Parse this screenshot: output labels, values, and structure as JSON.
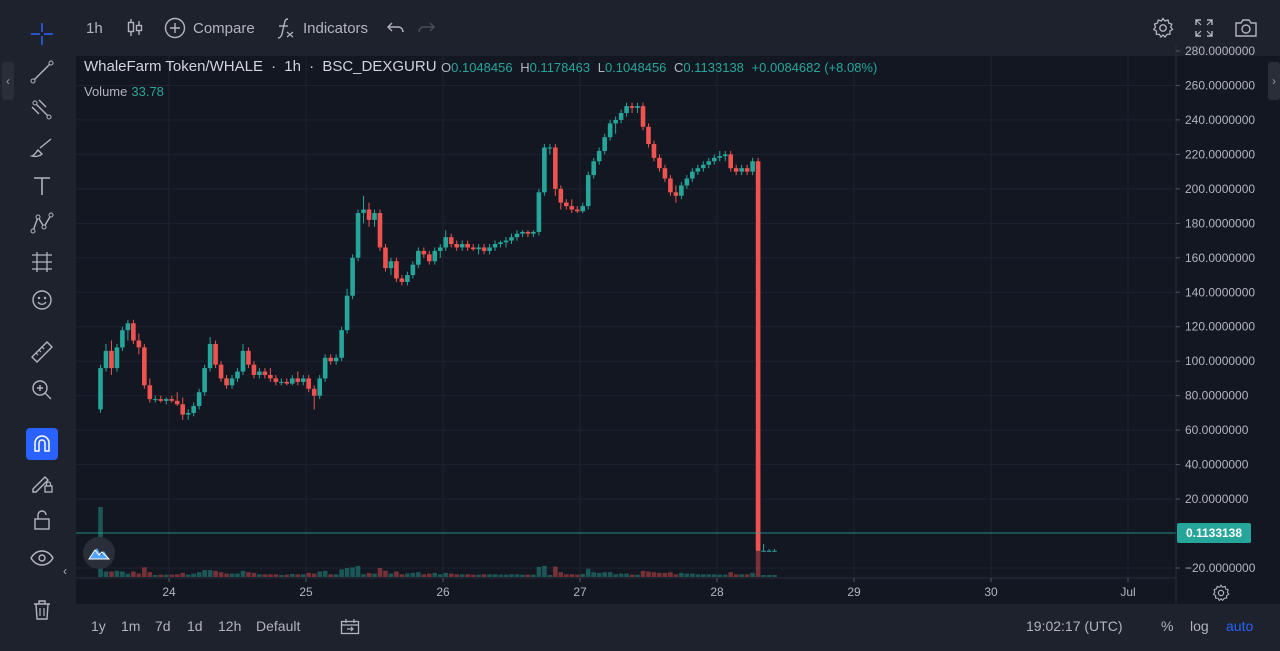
{
  "toolbar": {
    "interval": "1h",
    "compare": "Compare",
    "indicators": "Indicators"
  },
  "legend": {
    "symbol": "WhaleFarm Token/WHALE",
    "sep1": "·",
    "interval": "1h",
    "sep2": "·",
    "exchange": "BSC_DEXGURU",
    "o_label": "O",
    "o_value": "0.1048456",
    "h_label": "H",
    "h_value": "0.1178463",
    "l_label": "L",
    "l_value": "0.1048456",
    "c_label": "C",
    "c_value": "0.1133138",
    "change": "+0.0084682 (+8.08%)",
    "volume_label": "Volume",
    "volume_value": "33.78"
  },
  "price_axis": {
    "labels": [
      "280.0000000",
      "260.0000000",
      "240.0000000",
      "220.0000000",
      "200.0000000",
      "180.0000000",
      "160.0000000",
      "140.0000000",
      "120.0000000",
      "100.0000000",
      "80.0000000",
      "60.0000000",
      "40.0000000",
      "20.0000000",
      "−20.0000000"
    ],
    "last_price": "0.1133138",
    "last_price_color": "#26a69a"
  },
  "time_axis": {
    "labels": [
      "24",
      "25",
      "26",
      "27",
      "28",
      "29",
      "30",
      "Jul"
    ]
  },
  "bottom": {
    "ranges": [
      "1y",
      "1m",
      "7d",
      "1d",
      "12h",
      "Default"
    ],
    "clock": "19:02:17 (UTC)",
    "percent": "%",
    "log": "log",
    "auto": "auto"
  },
  "colors": {
    "up": "#26a69a",
    "down": "#ef5350",
    "accent": "#2962ff"
  },
  "chart_data": {
    "type": "candlestick",
    "title": "WhaleFarm Token/WHALE · 1h · BSC_DEXGURU",
    "ylim": [
      -24,
      282
    ],
    "x_ticks": [
      "24",
      "25",
      "26",
      "27",
      "28",
      "29",
      "30",
      "Jul"
    ],
    "x_days_range": [
      23.45,
      30.95
    ],
    "candles": [
      {
        "d": 23.5,
        "o": 72,
        "h": 98,
        "l": 70,
        "c": 96
      },
      {
        "d": 23.54,
        "o": 96,
        "h": 110,
        "l": 94,
        "c": 106
      },
      {
        "d": 23.58,
        "o": 106,
        "h": 112,
        "l": 92,
        "c": 96
      },
      {
        "d": 23.62,
        "o": 96,
        "h": 110,
        "l": 94,
        "c": 108
      },
      {
        "d": 23.66,
        "o": 108,
        "h": 120,
        "l": 106,
        "c": 118
      },
      {
        "d": 23.7,
        "o": 118,
        "h": 124,
        "l": 112,
        "c": 122
      },
      {
        "d": 23.74,
        "o": 122,
        "h": 124,
        "l": 110,
        "c": 112
      },
      {
        "d": 23.78,
        "o": 112,
        "h": 116,
        "l": 104,
        "c": 108
      },
      {
        "d": 23.82,
        "o": 108,
        "h": 110,
        "l": 84,
        "c": 86
      },
      {
        "d": 23.86,
        "o": 86,
        "h": 90,
        "l": 76,
        "c": 78
      },
      {
        "d": 23.9,
        "o": 78,
        "h": 80,
        "l": 76,
        "c": 78
      },
      {
        "d": 23.94,
        "o": 78,
        "h": 80,
        "l": 76,
        "c": 77
      },
      {
        "d": 23.98,
        "o": 77,
        "h": 79,
        "l": 75,
        "c": 78
      },
      {
        "d": 24.02,
        "o": 78,
        "h": 80,
        "l": 76,
        "c": 77
      },
      {
        "d": 24.06,
        "o": 77,
        "h": 82,
        "l": 74,
        "c": 75
      },
      {
        "d": 24.1,
        "o": 75,
        "h": 79,
        "l": 66,
        "c": 69
      },
      {
        "d": 24.14,
        "o": 69,
        "h": 72,
        "l": 66,
        "c": 70
      },
      {
        "d": 24.18,
        "o": 70,
        "h": 76,
        "l": 68,
        "c": 74
      },
      {
        "d": 24.22,
        "o": 74,
        "h": 84,
        "l": 72,
        "c": 82
      },
      {
        "d": 24.26,
        "o": 82,
        "h": 98,
        "l": 80,
        "c": 96
      },
      {
        "d": 24.3,
        "o": 96,
        "h": 114,
        "l": 94,
        "c": 110
      },
      {
        "d": 24.34,
        "o": 110,
        "h": 112,
        "l": 96,
        "c": 98
      },
      {
        "d": 24.38,
        "o": 98,
        "h": 100,
        "l": 88,
        "c": 90
      },
      {
        "d": 24.42,
        "o": 90,
        "h": 92,
        "l": 84,
        "c": 86
      },
      {
        "d": 24.46,
        "o": 86,
        "h": 92,
        "l": 84,
        "c": 90
      },
      {
        "d": 24.5,
        "o": 90,
        "h": 96,
        "l": 88,
        "c": 94
      },
      {
        "d": 24.54,
        "o": 94,
        "h": 110,
        "l": 92,
        "c": 106
      },
      {
        "d": 24.58,
        "o": 106,
        "h": 108,
        "l": 96,
        "c": 98
      },
      {
        "d": 24.62,
        "o": 98,
        "h": 100,
        "l": 90,
        "c": 92
      },
      {
        "d": 24.66,
        "o": 92,
        "h": 96,
        "l": 90,
        "c": 94
      },
      {
        "d": 24.7,
        "o": 94,
        "h": 96,
        "l": 90,
        "c": 92
      },
      {
        "d": 24.74,
        "o": 92,
        "h": 96,
        "l": 88,
        "c": 90
      },
      {
        "d": 24.78,
        "o": 90,
        "h": 92,
        "l": 86,
        "c": 88
      },
      {
        "d": 24.82,
        "o": 88,
        "h": 90,
        "l": 86,
        "c": 88
      },
      {
        "d": 24.86,
        "o": 88,
        "h": 90,
        "l": 86,
        "c": 87
      },
      {
        "d": 24.9,
        "o": 87,
        "h": 92,
        "l": 86,
        "c": 90
      },
      {
        "d": 24.94,
        "o": 90,
        "h": 94,
        "l": 86,
        "c": 88
      },
      {
        "d": 24.98,
        "o": 88,
        "h": 92,
        "l": 86,
        "c": 90
      },
      {
        "d": 25.02,
        "o": 90,
        "h": 92,
        "l": 82,
        "c": 84
      },
      {
        "d": 25.06,
        "o": 84,
        "h": 86,
        "l": 72,
        "c": 80
      },
      {
        "d": 25.1,
        "o": 80,
        "h": 92,
        "l": 78,
        "c": 90
      },
      {
        "d": 25.14,
        "o": 90,
        "h": 104,
        "l": 88,
        "c": 102
      },
      {
        "d": 25.18,
        "o": 102,
        "h": 104,
        "l": 98,
        "c": 100
      },
      {
        "d": 25.22,
        "o": 100,
        "h": 104,
        "l": 98,
        "c": 102
      },
      {
        "d": 25.26,
        "o": 102,
        "h": 120,
        "l": 100,
        "c": 118
      },
      {
        "d": 25.3,
        "o": 118,
        "h": 142,
        "l": 116,
        "c": 138
      },
      {
        "d": 25.34,
        "o": 138,
        "h": 162,
        "l": 136,
        "c": 160
      },
      {
        "d": 25.38,
        "o": 160,
        "h": 188,
        "l": 158,
        "c": 186
      },
      {
        "d": 25.42,
        "o": 186,
        "h": 196,
        "l": 180,
        "c": 188
      },
      {
        "d": 25.46,
        "o": 188,
        "h": 192,
        "l": 178,
        "c": 182
      },
      {
        "d": 25.5,
        "o": 182,
        "h": 188,
        "l": 178,
        "c": 186
      },
      {
        "d": 25.54,
        "o": 186,
        "h": 188,
        "l": 164,
        "c": 166
      },
      {
        "d": 25.58,
        "o": 166,
        "h": 168,
        "l": 152,
        "c": 154
      },
      {
        "d": 25.62,
        "o": 154,
        "h": 160,
        "l": 150,
        "c": 158
      },
      {
        "d": 25.66,
        "o": 158,
        "h": 160,
        "l": 146,
        "c": 148
      },
      {
        "d": 25.7,
        "o": 148,
        "h": 150,
        "l": 144,
        "c": 146
      },
      {
        "d": 25.74,
        "o": 146,
        "h": 152,
        "l": 144,
        "c": 150
      },
      {
        "d": 25.78,
        "o": 150,
        "h": 158,
        "l": 148,
        "c": 156
      },
      {
        "d": 25.82,
        "o": 156,
        "h": 166,
        "l": 154,
        "c": 164
      },
      {
        "d": 25.86,
        "o": 164,
        "h": 166,
        "l": 160,
        "c": 162
      },
      {
        "d": 25.9,
        "o": 162,
        "h": 164,
        "l": 156,
        "c": 158
      },
      {
        "d": 25.94,
        "o": 158,
        "h": 166,
        "l": 156,
        "c": 164
      },
      {
        "d": 25.98,
        "o": 164,
        "h": 168,
        "l": 160,
        "c": 166
      },
      {
        "d": 26.02,
        "o": 166,
        "h": 176,
        "l": 164,
        "c": 172
      },
      {
        "d": 26.06,
        "o": 172,
        "h": 174,
        "l": 166,
        "c": 168
      },
      {
        "d": 26.1,
        "o": 168,
        "h": 170,
        "l": 164,
        "c": 166
      },
      {
        "d": 26.14,
        "o": 166,
        "h": 170,
        "l": 164,
        "c": 168
      },
      {
        "d": 26.18,
        "o": 168,
        "h": 170,
        "l": 164,
        "c": 166
      },
      {
        "d": 26.22,
        "o": 166,
        "h": 168,
        "l": 164,
        "c": 165
      },
      {
        "d": 26.26,
        "o": 165,
        "h": 168,
        "l": 162,
        "c": 166
      },
      {
        "d": 26.3,
        "o": 166,
        "h": 168,
        "l": 162,
        "c": 164
      },
      {
        "d": 26.34,
        "o": 164,
        "h": 168,
        "l": 162,
        "c": 166
      },
      {
        "d": 26.38,
        "o": 166,
        "h": 170,
        "l": 164,
        "c": 168
      },
      {
        "d": 26.42,
        "o": 168,
        "h": 170,
        "l": 166,
        "c": 169
      },
      {
        "d": 26.46,
        "o": 169,
        "h": 172,
        "l": 166,
        "c": 170
      },
      {
        "d": 26.5,
        "o": 170,
        "h": 174,
        "l": 168,
        "c": 172
      },
      {
        "d": 26.54,
        "o": 172,
        "h": 176,
        "l": 170,
        "c": 174
      },
      {
        "d": 26.58,
        "o": 174,
        "h": 176,
        "l": 172,
        "c": 175
      },
      {
        "d": 26.62,
        "o": 175,
        "h": 176,
        "l": 172,
        "c": 174
      },
      {
        "d": 26.66,
        "o": 174,
        "h": 176,
        "l": 172,
        "c": 175
      },
      {
        "d": 26.7,
        "o": 175,
        "h": 200,
        "l": 173,
        "c": 198
      },
      {
        "d": 26.74,
        "o": 198,
        "h": 226,
        "l": 196,
        "c": 224
      },
      {
        "d": 26.78,
        "o": 224,
        "h": 226,
        "l": 220,
        "c": 224
      },
      {
        "d": 26.82,
        "o": 224,
        "h": 226,
        "l": 196,
        "c": 200
      },
      {
        "d": 26.86,
        "o": 200,
        "h": 202,
        "l": 188,
        "c": 192
      },
      {
        "d": 26.9,
        "o": 192,
        "h": 194,
        "l": 188,
        "c": 190
      },
      {
        "d": 26.94,
        "o": 190,
        "h": 194,
        "l": 186,
        "c": 188
      },
      {
        "d": 26.98,
        "o": 188,
        "h": 190,
        "l": 186,
        "c": 187
      },
      {
        "d": 27.02,
        "o": 187,
        "h": 192,
        "l": 186,
        "c": 190
      },
      {
        "d": 27.06,
        "o": 190,
        "h": 210,
        "l": 188,
        "c": 208
      },
      {
        "d": 27.1,
        "o": 208,
        "h": 218,
        "l": 206,
        "c": 216
      },
      {
        "d": 27.14,
        "o": 216,
        "h": 224,
        "l": 214,
        "c": 222
      },
      {
        "d": 27.18,
        "o": 222,
        "h": 232,
        "l": 220,
        "c": 230
      },
      {
        "d": 27.22,
        "o": 230,
        "h": 240,
        "l": 228,
        "c": 238
      },
      {
        "d": 27.26,
        "o": 238,
        "h": 242,
        "l": 232,
        "c": 240
      },
      {
        "d": 27.3,
        "o": 240,
        "h": 246,
        "l": 238,
        "c": 244
      },
      {
        "d": 27.34,
        "o": 244,
        "h": 250,
        "l": 242,
        "c": 248
      },
      {
        "d": 27.38,
        "o": 248,
        "h": 250,
        "l": 244,
        "c": 247
      },
      {
        "d": 27.42,
        "o": 247,
        "h": 250,
        "l": 244,
        "c": 248
      },
      {
        "d": 27.46,
        "o": 248,
        "h": 250,
        "l": 234,
        "c": 236
      },
      {
        "d": 27.5,
        "o": 236,
        "h": 238,
        "l": 224,
        "c": 226
      },
      {
        "d": 27.54,
        "o": 226,
        "h": 228,
        "l": 216,
        "c": 218
      },
      {
        "d": 27.58,
        "o": 218,
        "h": 220,
        "l": 210,
        "c": 212
      },
      {
        "d": 27.62,
        "o": 212,
        "h": 214,
        "l": 204,
        "c": 206
      },
      {
        "d": 27.66,
        "o": 206,
        "h": 208,
        "l": 196,
        "c": 198
      },
      {
        "d": 27.7,
        "o": 198,
        "h": 202,
        "l": 192,
        "c": 196
      },
      {
        "d": 27.74,
        "o": 196,
        "h": 204,
        "l": 194,
        "c": 202
      },
      {
        "d": 27.78,
        "o": 202,
        "h": 208,
        "l": 200,
        "c": 206
      },
      {
        "d": 27.82,
        "o": 206,
        "h": 212,
        "l": 204,
        "c": 210
      },
      {
        "d": 27.86,
        "o": 210,
        "h": 214,
        "l": 208,
        "c": 212
      },
      {
        "d": 27.9,
        "o": 212,
        "h": 216,
        "l": 210,
        "c": 214
      },
      {
        "d": 27.94,
        "o": 214,
        "h": 218,
        "l": 212,
        "c": 216
      },
      {
        "d": 27.98,
        "o": 216,
        "h": 220,
        "l": 214,
        "c": 218
      },
      {
        "d": 28.02,
        "o": 218,
        "h": 222,
        "l": 216,
        "c": 219
      },
      {
        "d": 28.06,
        "o": 219,
        "h": 222,
        "l": 216,
        "c": 220
      },
      {
        "d": 28.1,
        "o": 220,
        "h": 222,
        "l": 210,
        "c": 212
      },
      {
        "d": 28.14,
        "o": 212,
        "h": 214,
        "l": 208,
        "c": 210
      },
      {
        "d": 28.18,
        "o": 210,
        "h": 214,
        "l": 208,
        "c": 212
      },
      {
        "d": 28.22,
        "o": 212,
        "h": 214,
        "l": 208,
        "c": 210
      },
      {
        "d": 28.26,
        "o": 210,
        "h": 218,
        "l": 208,
        "c": 216
      },
      {
        "d": 28.3,
        "o": 216,
        "h": 218,
        "l": -10,
        "c": -10
      },
      {
        "d": 28.34,
        "o": -10,
        "h": -6,
        "l": -10,
        "c": -10
      },
      {
        "d": 28.38,
        "o": -10,
        "h": -9,
        "l": -10,
        "c": -10
      },
      {
        "d": 28.42,
        "o": -10,
        "h": -9,
        "l": -10,
        "c": -10
      }
    ],
    "volume": {
      "label": "Volume",
      "last": 33.78
    }
  }
}
